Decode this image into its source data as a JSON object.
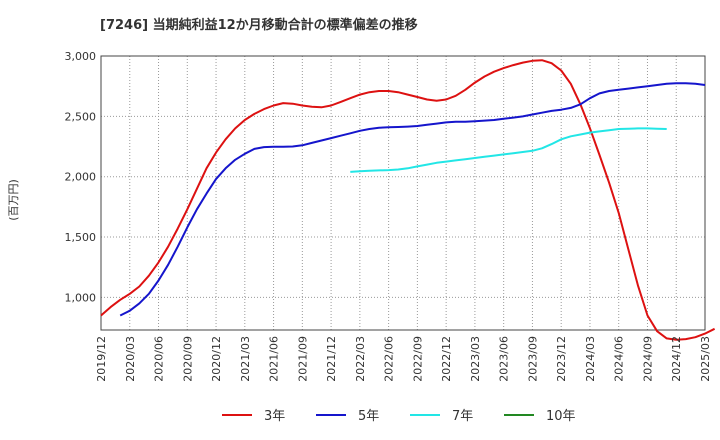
{
  "chart_data": {
    "type": "line",
    "title": "[7246]  当期純利益12か月移動合計の標準偏差の推移",
    "xlabel": "",
    "ylabel": "(百万円)",
    "ylim": [
      730,
      3000
    ],
    "yticks": [
      1000,
      1500,
      2000,
      2500,
      3000
    ],
    "ytick_labels": [
      "1,000",
      "1,500",
      "2,000",
      "2,500",
      "3,000"
    ],
    "x_range": [
      "2019/12",
      "2025/03"
    ],
    "xtick_labels": [
      "2019/12",
      "2020/03",
      "2020/06",
      "2020/09",
      "2020/12",
      "2021/03",
      "2021/06",
      "2021/09",
      "2021/12",
      "2022/03",
      "2022/06",
      "2022/09",
      "2022/12",
      "2023/03",
      "2023/06",
      "2023/09",
      "2023/12",
      "2024/03",
      "2024/06",
      "2024/09",
      "2024/12",
      "2025/03"
    ],
    "grid": true,
    "legend_position": "bottom",
    "series": [
      {
        "name": "3年",
        "color": "#dd1111",
        "start": "2019/12",
        "values": [
          850,
          920,
          980,
          1030,
          1090,
          1180,
          1290,
          1420,
          1570,
          1730,
          1900,
          2070,
          2200,
          2310,
          2400,
          2470,
          2520,
          2560,
          2590,
          2610,
          2605,
          2590,
          2580,
          2575,
          2590,
          2620,
          2650,
          2680,
          2700,
          2710,
          2710,
          2700,
          2680,
          2660,
          2640,
          2630,
          2640,
          2670,
          2720,
          2780,
          2830,
          2870,
          2900,
          2925,
          2945,
          2960,
          2965,
          2940,
          2880,
          2770,
          2600,
          2400,
          2180,
          1950,
          1700,
          1400,
          1100,
          850,
          720,
          660,
          650,
          655,
          670,
          700,
          740
        ]
      },
      {
        "name": "5年",
        "color": "#1515cc",
        "start": "2020/02",
        "values": [
          850,
          890,
          950,
          1030,
          1140,
          1270,
          1420,
          1580,
          1730,
          1860,
          1980,
          2070,
          2140,
          2190,
          2230,
          2245,
          2248,
          2248,
          2250,
          2260,
          2280,
          2300,
          2320,
          2340,
          2360,
          2380,
          2395,
          2405,
          2410,
          2412,
          2415,
          2420,
          2430,
          2440,
          2450,
          2455,
          2455,
          2460,
          2465,
          2470,
          2480,
          2490,
          2500,
          2515,
          2530,
          2545,
          2555,
          2570,
          2600,
          2650,
          2690,
          2710,
          2720,
          2730,
          2740,
          2750,
          2760,
          2770,
          2775,
          2775,
          2770,
          2760
        ]
      },
      {
        "name": "7年",
        "color": "#22e6e6",
        "start": "2022/02",
        "values": [
          2040,
          2045,
          2050,
          2052,
          2055,
          2060,
          2070,
          2085,
          2100,
          2115,
          2125,
          2135,
          2145,
          2155,
          2165,
          2175,
          2185,
          2195,
          2205,
          2215,
          2235,
          2270,
          2310,
          2335,
          2350,
          2365,
          2375,
          2385,
          2395,
          2398,
          2400,
          2400,
          2398,
          2395
        ]
      },
      {
        "name": "10年",
        "color": "#228822",
        "start": "2024/12",
        "values": []
      }
    ]
  }
}
